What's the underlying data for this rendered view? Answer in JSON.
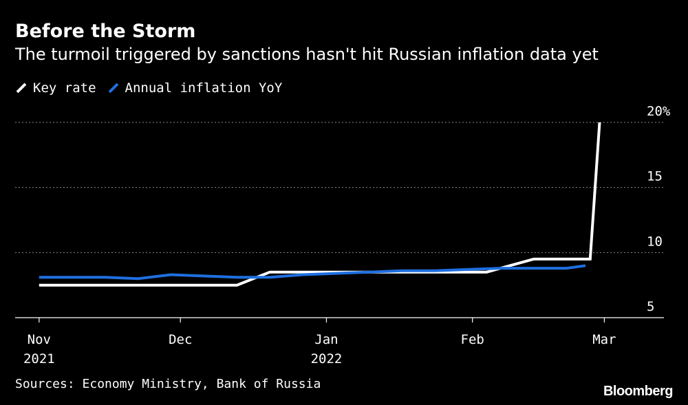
{
  "title": "Before the Storm",
  "subtitle": "The turmoil triggered by sanctions hasn't hit Russian inflation data yet",
  "source": "Sources: Economy Ministry, Bank of Russia",
  "brand": "Bloomberg",
  "colors": {
    "background": "#000000",
    "key_rate": "#ffffff",
    "inflation": "#1f6fe0",
    "grid": "#8a8a8a"
  },
  "chart_data": {
    "type": "line",
    "title": "Before the Storm",
    "subtitle": "The turmoil triggered by sanctions hasn't hit Russian inflation data yet",
    "xlabel": "",
    "ylabel": "",
    "ylim": [
      5,
      20
    ],
    "y_ticks": [
      {
        "value": 5,
        "label": "5"
      },
      {
        "value": 10,
        "label": "10"
      },
      {
        "value": 15,
        "label": "15"
      },
      {
        "value": 20,
        "label": "20%"
      }
    ],
    "x_ticks": [
      {
        "date": "2021-11-01",
        "label": "Nov",
        "sublabel": "2021"
      },
      {
        "date": "2021-12-01",
        "label": "Dec",
        "sublabel": ""
      },
      {
        "date": "2022-01-01",
        "label": "Jan",
        "sublabel": "2022"
      },
      {
        "date": "2022-02-01",
        "label": "Feb",
        "sublabel": ""
      },
      {
        "date": "2022-03-01",
        "label": "Mar",
        "sublabel": ""
      }
    ],
    "xlim": [
      "2021-10-31",
      "2022-03-10"
    ],
    "grid": "horizontal dotted",
    "legend_position": "top-left",
    "series": [
      {
        "name": "Key rate",
        "color": "#ffffff",
        "points": [
          {
            "x": "2021-11-01",
            "y": 7.5
          },
          {
            "x": "2021-12-13",
            "y": 7.5
          },
          {
            "x": "2021-12-20",
            "y": 8.5
          },
          {
            "x": "2022-02-04",
            "y": 8.5
          },
          {
            "x": "2022-02-14",
            "y": 9.5
          },
          {
            "x": "2022-02-26",
            "y": 9.5
          },
          {
            "x": "2022-02-28",
            "y": 20
          }
        ]
      },
      {
        "name": "Annual inflation YoY",
        "color": "#1f6fe0",
        "points": [
          {
            "x": "2021-11-01",
            "y": 8.1
          },
          {
            "x": "2021-11-15",
            "y": 8.1
          },
          {
            "x": "2021-11-22",
            "y": 8.0
          },
          {
            "x": "2021-11-29",
            "y": 8.3
          },
          {
            "x": "2021-12-06",
            "y": 8.2
          },
          {
            "x": "2021-12-13",
            "y": 8.1
          },
          {
            "x": "2021-12-20",
            "y": 8.1
          },
          {
            "x": "2021-12-27",
            "y": 8.3
          },
          {
            "x": "2022-01-03",
            "y": 8.4
          },
          {
            "x": "2022-01-10",
            "y": 8.5
          },
          {
            "x": "2022-01-17",
            "y": 8.6
          },
          {
            "x": "2022-01-24",
            "y": 8.6
          },
          {
            "x": "2022-01-31",
            "y": 8.7
          },
          {
            "x": "2022-02-07",
            "y": 8.8
          },
          {
            "x": "2022-02-14",
            "y": 8.8
          },
          {
            "x": "2022-02-21",
            "y": 8.8
          },
          {
            "x": "2022-02-25",
            "y": 9.0
          }
        ]
      }
    ]
  },
  "legend": [
    {
      "label": "Key rate",
      "color": "#ffffff"
    },
    {
      "label": "Annual inflation YoY",
      "color": "#1f6fe0"
    }
  ]
}
